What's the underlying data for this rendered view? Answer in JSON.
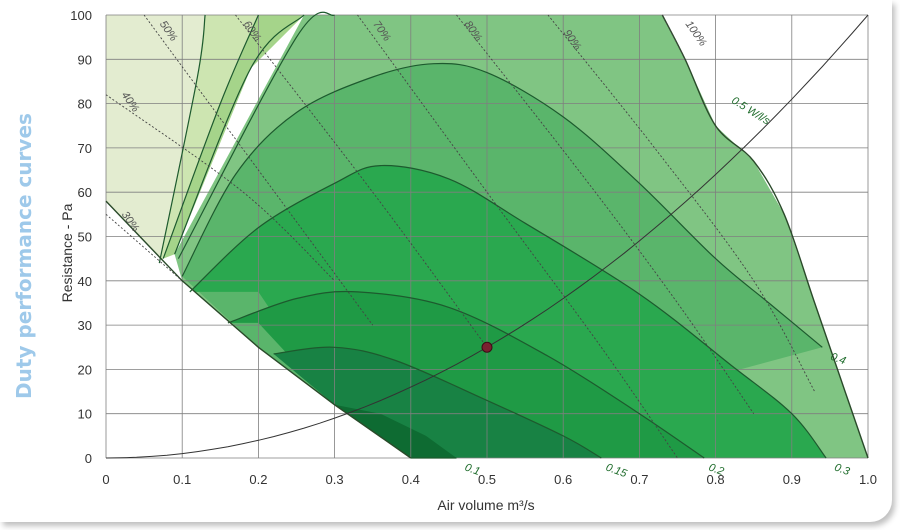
{
  "title": "Duty performance curves",
  "chart_data": {
    "type": "area",
    "title": "Duty performance curves",
    "xlabel": "Air volume m³/s",
    "ylabel": "Resistance - Pa",
    "xlim": [
      0,
      1.0
    ],
    "ylim": [
      0,
      100
    ],
    "x_ticks": [
      "0",
      "0.1",
      "0.2",
      "0.3",
      "0.4",
      "0.5",
      "0.6",
      "0.7",
      "0.8",
      "0.9",
      "1.0"
    ],
    "y_ticks": [
      "0",
      "10",
      "20",
      "30",
      "40",
      "50",
      "60",
      "70",
      "80",
      "90",
      "100"
    ],
    "grid": true,
    "colors": {
      "zone_outer": "#80c583",
      "zone_2": "#5ab56b",
      "zone_3": "#2aa84f",
      "zone_4": "#1f9a45",
      "zone_5": "#188244",
      "zone_6": "#0e6b32",
      "zone_left_1": "#e3ecd0",
      "zone_left_2": "#cde5b1",
      "zone_left_3": "#a5d48a",
      "contour_line": "#1d5a2e",
      "label_green": "#1d6b2a",
      "marker": "#7a2030"
    },
    "boundary": [
      [
        0.0,
        58
      ],
      [
        0.1,
        40
      ],
      [
        0.2,
        25
      ],
      [
        0.3,
        12
      ],
      [
        0.4,
        0
      ]
    ],
    "power_contours": [
      {
        "label": "0.1",
        "label_at": [
          0.47,
          0
        ],
        "points": [
          [
            0.4,
            0
          ],
          [
            0.46,
            0
          ]
        ]
      },
      {
        "label": "0.15",
        "label_at": [
          0.655,
          0
        ],
        "points": [
          [
            0.22,
            23.5
          ],
          [
            0.3,
            25
          ],
          [
            0.38,
            22
          ],
          [
            0.5,
            13
          ],
          [
            0.6,
            5
          ],
          [
            0.65,
            0
          ]
        ]
      },
      {
        "label": "0.2",
        "label_at": [
          0.79,
          0
        ],
        "points": [
          [
            0.16,
            30.5
          ],
          [
            0.25,
            36
          ],
          [
            0.33,
            37.5
          ],
          [
            0.45,
            34
          ],
          [
            0.58,
            23
          ],
          [
            0.7,
            10
          ],
          [
            0.785,
            0
          ]
        ]
      },
      {
        "label": "0.3",
        "label_at": [
          0.955,
          0
        ],
        "points": [
          [
            0.11,
            37.5
          ],
          [
            0.2,
            52
          ],
          [
            0.3,
            62
          ],
          [
            0.36,
            66
          ],
          [
            0.45,
            63
          ],
          [
            0.55,
            53
          ],
          [
            0.7,
            37
          ],
          [
            0.82,
            21
          ],
          [
            0.9,
            10
          ],
          [
            0.945,
            0
          ]
        ]
      },
      {
        "label": "0.4",
        "label_at": [
          0.95,
          25
        ],
        "points": [
          [
            0.1,
            41
          ],
          [
            0.17,
            64
          ],
          [
            0.25,
            78
          ],
          [
            0.35,
            86
          ],
          [
            0.43,
            89
          ],
          [
            0.5,
            87
          ],
          [
            0.6,
            77
          ],
          [
            0.7,
            62
          ],
          [
            0.8,
            45
          ],
          [
            0.87,
            35
          ],
          [
            0.94,
            25
          ]
        ]
      },
      {
        "label": "0.5 W/l/s",
        "label_at": [
          0.82,
          83
        ],
        "points": [
          [
            0.07,
            44
          ],
          [
            0.12,
            86
          ],
          [
            0.13,
            100
          ]
        ]
      },
      {
        "label": "",
        "points": [
          [
            0.075,
            45
          ],
          [
            0.15,
            80
          ],
          [
            0.2,
            100
          ]
        ]
      },
      {
        "label": "",
        "points": [
          [
            0.09,
            46
          ],
          [
            0.19,
            88
          ],
          [
            0.26,
            100
          ]
        ]
      },
      {
        "label": "",
        "points": [
          [
            0.095,
            45
          ],
          [
            0.25,
            95
          ],
          [
            0.3,
            100
          ]
        ]
      }
    ],
    "outer_envelope": [
      [
        0.73,
        100
      ],
      [
        0.76,
        90
      ],
      [
        0.8,
        75
      ],
      [
        0.85,
        67
      ],
      [
        0.89,
        55
      ],
      [
        0.93,
        35
      ],
      [
        0.97,
        15
      ],
      [
        1.0,
        0
      ]
    ],
    "efficiency_lines": [
      {
        "label": "30%",
        "label_at": [
          0.02,
          55
        ]
      },
      {
        "label": "40%",
        "label_at": [
          0.02,
          82
        ]
      },
      {
        "label": "50%",
        "label_at": [
          0.07,
          98
        ]
      },
      {
        "label": "60%",
        "label_at": [
          0.18,
          98
        ]
      },
      {
        "label": "70%",
        "label_at": [
          0.35,
          98
        ]
      },
      {
        "label": "80%",
        "label_at": [
          0.47,
          98
        ]
      },
      {
        "label": "90%",
        "label_at": [
          0.6,
          96
        ]
      },
      {
        "label": "100%",
        "label_at": [
          0.76,
          98
        ]
      }
    ],
    "system_curve": {
      "equation": "y = 100 * x^2",
      "x": [
        0,
        0.1,
        0.2,
        0.3,
        0.4,
        0.5,
        0.6,
        0.7,
        0.8,
        0.9,
        1.0
      ],
      "y": [
        0,
        1,
        4,
        9,
        16,
        25,
        36,
        49,
        64,
        81,
        100
      ]
    },
    "duty_point": {
      "x": 0.5,
      "y": 25
    }
  }
}
